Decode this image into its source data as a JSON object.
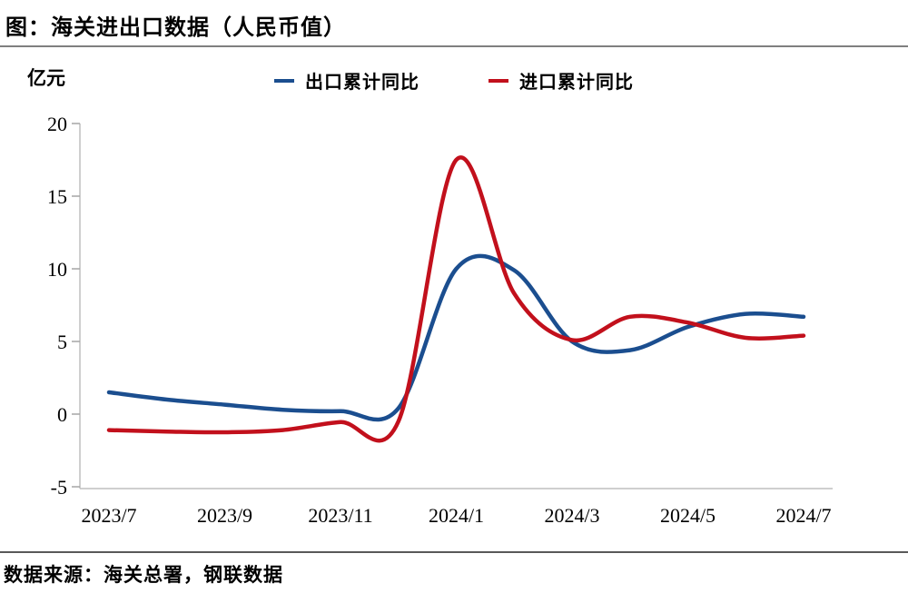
{
  "title": "图：海关进出口数据（人民币值）",
  "y_unit": "亿元",
  "source": "数据来源：海关总署，钢联数据",
  "colors": {
    "export_line": "#1b4e8f",
    "import_line": "#c2101c",
    "axis": "#bfbfbf",
    "tick": "#a6a6a6",
    "text": "#000000",
    "top_rule": "#7f7f7f",
    "bottom_rule": "#595959"
  },
  "legend": [
    {
      "label": "出口累计同比",
      "color": "#1b4e8f"
    },
    {
      "label": "进口累计同比",
      "color": "#c2101c"
    }
  ],
  "chart_data": {
    "type": "line",
    "title": "图：海关进出口数据（人民币值）",
    "xlabel": "",
    "ylabel": "亿元",
    "ylim": [
      -5,
      20
    ],
    "y_ticks": [
      20,
      15,
      10,
      5,
      0,
      -5
    ],
    "x_tick_labels": [
      "2023/7",
      "2023/9",
      "2023/11",
      "2024/1",
      "2024/3",
      "2024/5",
      "2024/7"
    ],
    "categories": [
      "2023/7",
      "2023/8",
      "2023/9",
      "2023/10",
      "2023/11",
      "2023/12",
      "2024/1",
      "2024/2",
      "2024/3",
      "2024/4",
      "2024/5",
      "2024/6",
      "2024/7"
    ],
    "series": [
      {
        "name": "出口累计同比",
        "color": "#1b4e8f",
        "values": [
          1.5,
          1.0,
          0.65,
          0.3,
          0.2,
          0.4,
          10.0,
          9.9,
          5.0,
          4.4,
          6.0,
          6.9,
          6.7
        ]
      },
      {
        "name": "进口累计同比",
        "color": "#c2101c",
        "values": [
          -1.1,
          -1.2,
          -1.25,
          -1.1,
          -0.55,
          -0.5,
          17.5,
          8.3,
          5.1,
          6.7,
          6.3,
          5.25,
          5.4
        ]
      }
    ],
    "grid": false,
    "legend_position": "top"
  }
}
